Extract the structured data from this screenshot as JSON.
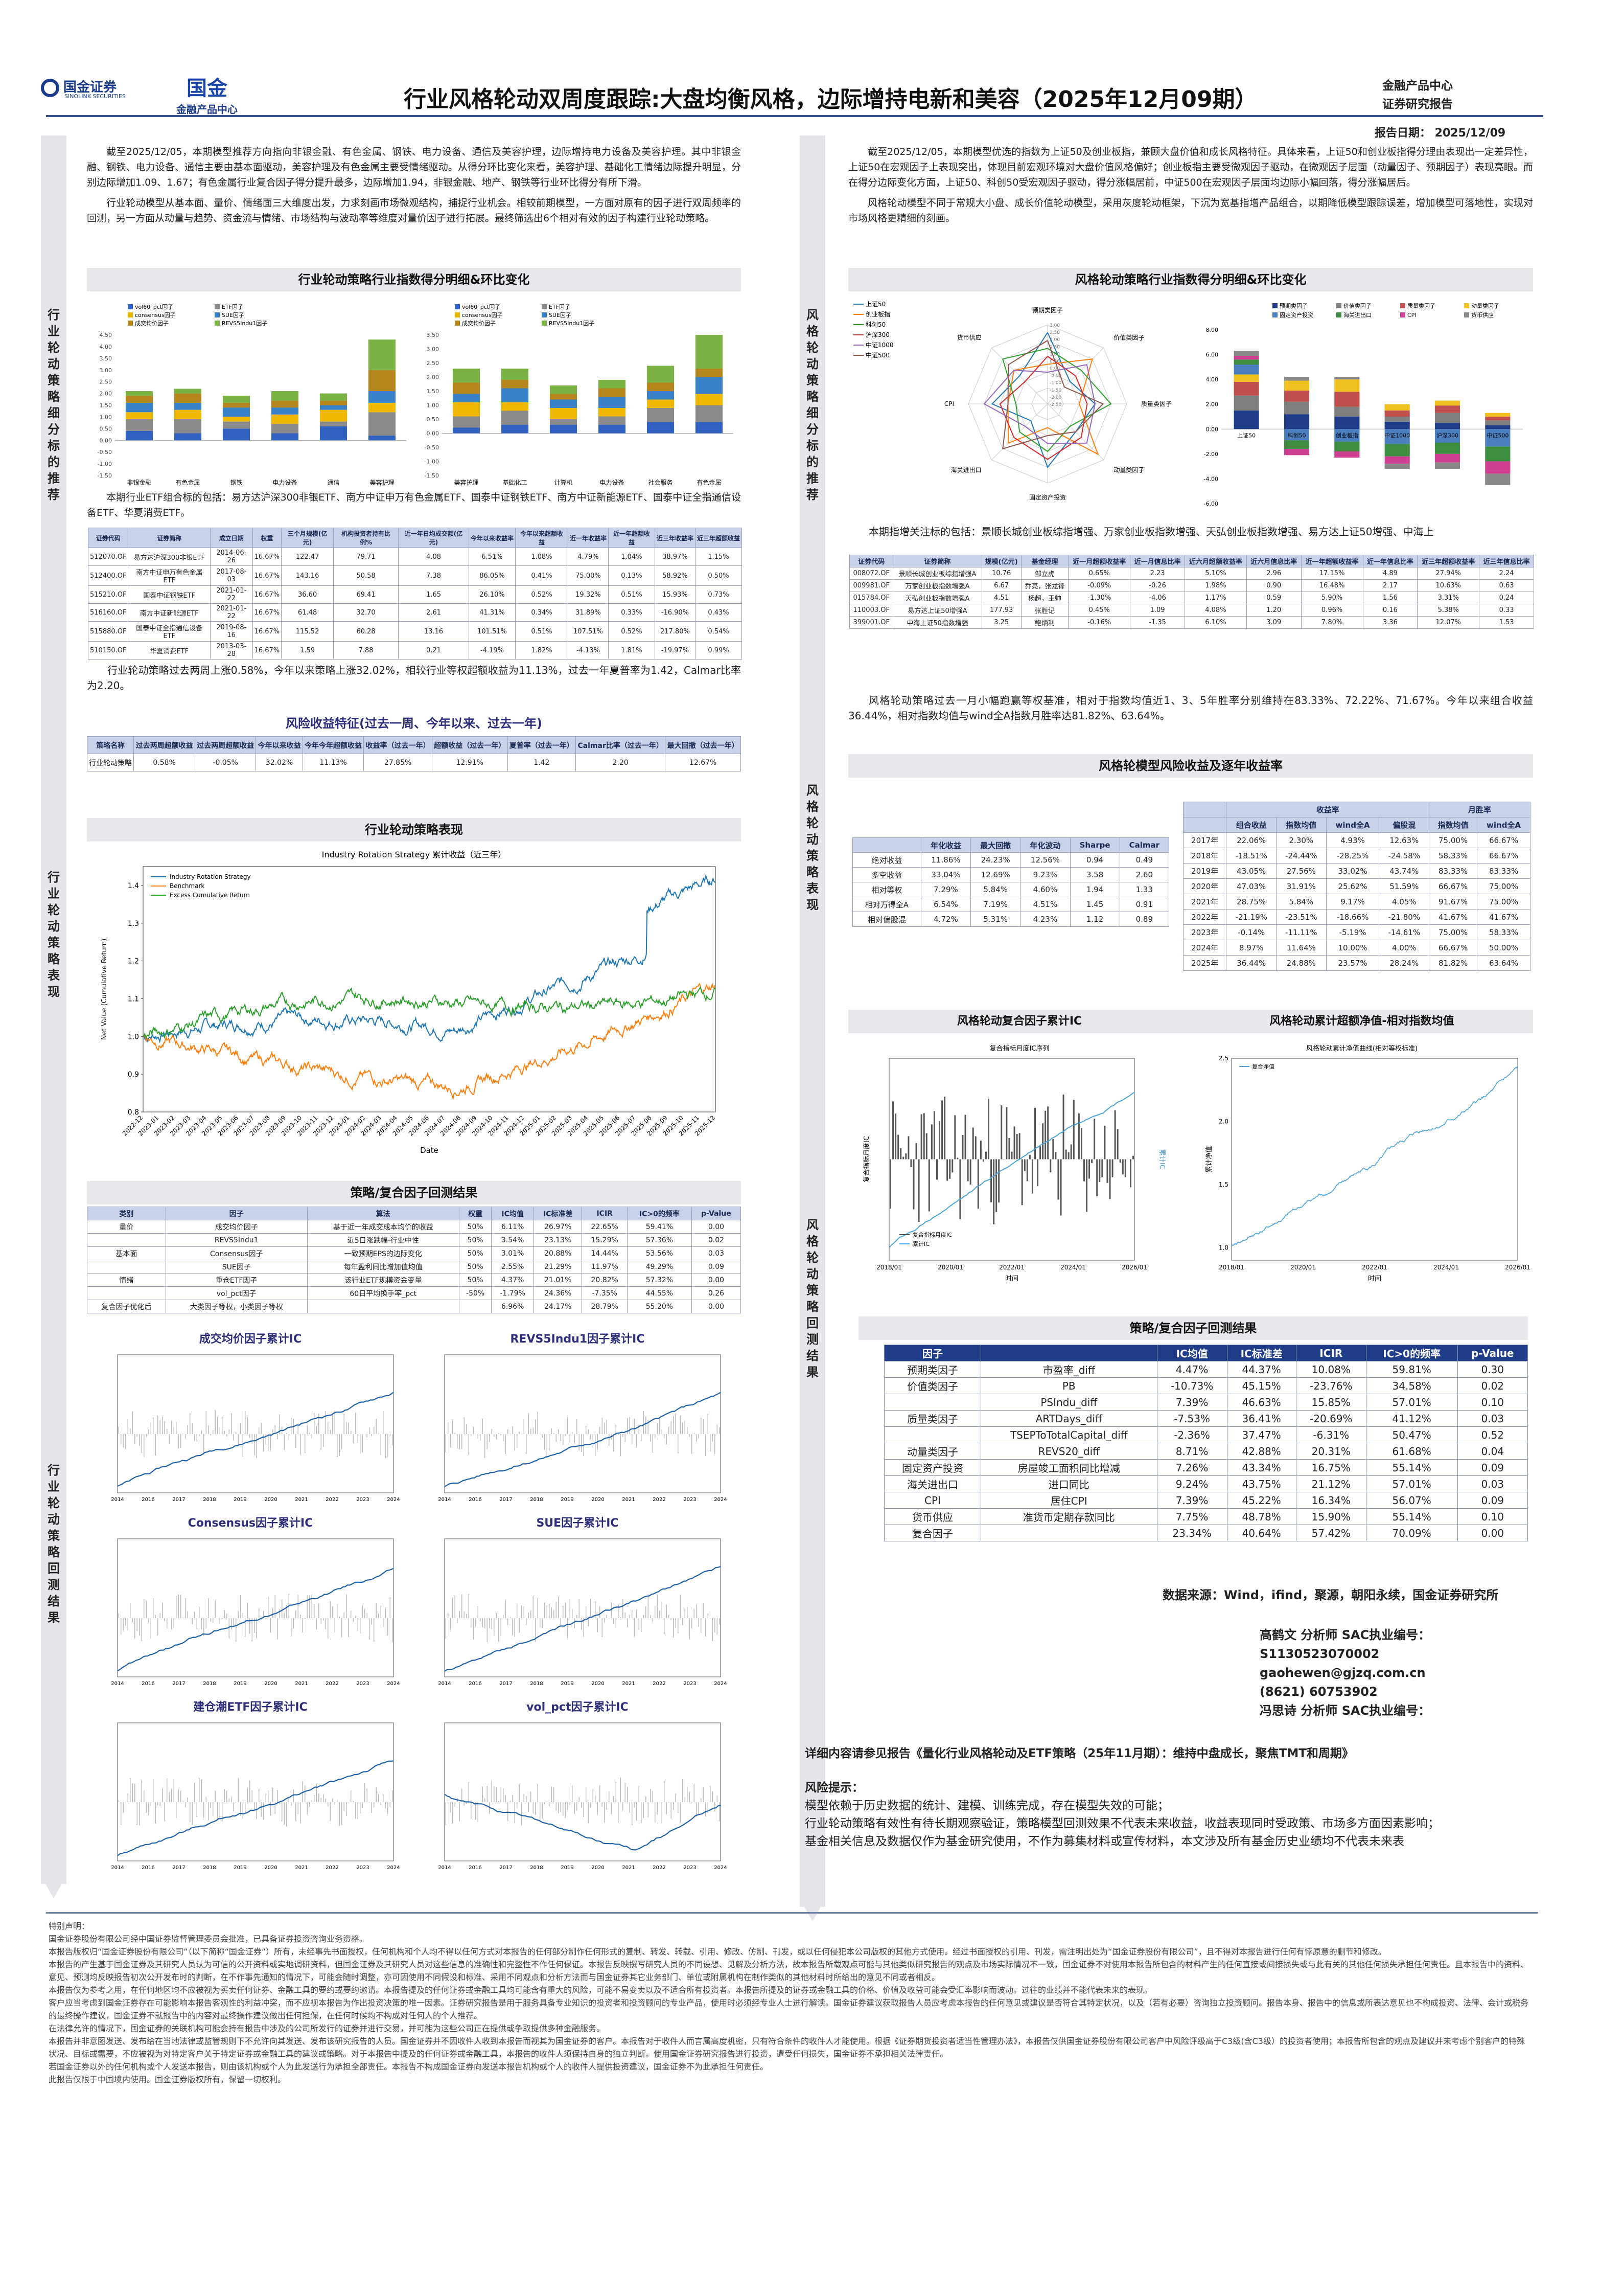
{
  "header": {
    "logo_left": "国金证券",
    "logo_left_sub": "SINOLINK SECURITIES",
    "logo_mid_big": "国金",
    "logo_mid_small": "金融产品中心",
    "title": "行业风格轮动双周度跟踪:大盘均衡风格，边际增持电新和美容（2025年12月09期）",
    "dept_line1": "金融产品中心",
    "dept_line2": "证券研究报告",
    "report_date": "报告日期：  2025/12/09"
  },
  "rails": {
    "l1": "行业轮动策略细分标的推荐",
    "l2": "行业轮动策略表现",
    "l3": "行业轮动策略回测结果",
    "m1": "风格轮动策略细分标的推荐",
    "m2": "风格轮动策略表现",
    "m3": "风格轮动策略回测结果"
  },
  "left": {
    "intro1": "截至2025/12/05，本期模型推荐方向指向非银金融、有色金属、钢铁、电力设备、通信及美容护理，边际增持电力设备及美容护理。其中非银金融、钢铁、电力设备、通信主要由基本面驱动，美容护理及有色金属主要受情绪驱动。从得分环比变化来看，美容护理、基础化工情绪边际提升明显，分别边际增加1.09、1.67；有色金属行业复合因子得分提升最多，边际增加1.94，非银金融、地产、钢铁等行业环比得分有所下滑。",
    "intro2": "行业轮动模型从基本面、量价、情绪面三大维度出发，力求刻画市场微观结构，捕捉行业机会。相较前期模型，一方面对原有的因子进行双周频率的回测，另一方面从动量与趋势、资金流与情绪、市场结构与波动率等维度对量价因子进行拓展。最终筛选出6个相对有效的因子构建行业轮动策略。",
    "chart1_title": "行业轮动策略行业指数得分明细&环比变化",
    "bar_left": {
      "legend": [
        "vol60_pct因子",
        "ETF因子",
        "consensus因子",
        "SUE因子",
        "成交均价因子",
        "REVS5Indu1因子"
      ],
      "categories": [
        "非银金融",
        "有色金属",
        "钢铁",
        "电力设备",
        "通信",
        "美容护理"
      ],
      "ylim": [
        -1.5,
        4.5
      ],
      "ticks": [
        "4.50",
        "4.00",
        "3.50",
        "3.00",
        "2.50",
        "2.00",
        "1.50",
        "1.00",
        "0.50",
        "0.00",
        "-0.50",
        "-1.00",
        "-1.50"
      ]
    },
    "bar_right": {
      "legend": [
        "vol60_pct因子",
        "ETF因子",
        "consensus因子",
        "SUE因子",
        "成交均价因子",
        "REVS5Indu1因子"
      ],
      "categories": [
        "美容护理",
        "基础化工",
        "计算机",
        "电力设备",
        "社会服务",
        "有色金属"
      ],
      "ticks": [
        "3.50",
        "3.00",
        "2.50",
        "2.00",
        "1.50",
        "1.00",
        "0.50",
        "0.00",
        "-0.50",
        "-1.00",
        "-1.50"
      ]
    },
    "etf_intro": "本期行业ETF组合标的包括：易方达沪深300非银ETF、南方中证申万有色金属ETF、国泰中证钢铁ETF、南方中证新能源ETF、国泰中证全指通信设备ETF、华夏消费ETF。",
    "etf_table": {
      "headers": [
        "证券代码",
        "证券简称",
        "成立日期",
        "权重",
        "三个月规模(亿元)",
        "机构投资者持有比例%",
        "近一年日均成交额(亿元)",
        "今年以来收益率",
        "今年以来超额收益",
        "近一年收益率",
        "近一年超额收益",
        "近三年收益率",
        "近三年超额收益"
      ],
      "rows": [
        [
          "512070.OF",
          "易方达沪深300非银ETF",
          "2014-06-26",
          "16.67%",
          "122.47",
          "79.71",
          "4.08",
          "6.51%",
          "1.08%",
          "4.79%",
          "1.04%",
          "38.97%",
          "1.15%"
        ],
        [
          "512400.OF",
          "南方中证申万有色金属ETF",
          "2017-08-03",
          "16.67%",
          "143.16",
          "50.58",
          "7.38",
          "86.05%",
          "0.41%",
          "75.00%",
          "0.13%",
          "58.92%",
          "0.50%"
        ],
        [
          "515210.OF",
          "国泰中证钢铁ETF",
          "2021-01-22",
          "16.67%",
          "36.60",
          "69.41",
          "1.65",
          "26.10%",
          "0.52%",
          "19.32%",
          "0.51%",
          "15.93%",
          "0.73%"
        ],
        [
          "516160.OF",
          "南方中证新能源ETF",
          "2021-01-22",
          "16.67%",
          "61.48",
          "32.70",
          "2.61",
          "41.31%",
          "0.34%",
          "31.89%",
          "0.33%",
          "-16.90%",
          "0.43%"
        ],
        [
          "515880.OF",
          "国泰中证全指通信设备ETF",
          "2019-08-16",
          "16.67%",
          "115.52",
          "60.28",
          "13.16",
          "101.51%",
          "0.51%",
          "107.51%",
          "0.52%",
          "217.80%",
          "0.54%"
        ],
        [
          "510150.OF",
          "华夏消费ETF",
          "2013-03-28",
          "16.67%",
          "1.59",
          "7.88",
          "0.21",
          "-4.19%",
          "1.82%",
          "-4.13%",
          "1.81%",
          "-19.97%",
          "0.99%"
        ]
      ]
    },
    "perf_text": "行业轮动策略过去两周上涨0.58%，今年以来策略上涨32.02%，相较行业等权超额收益为11.13%，过去一年夏普率为1.42，Calmar比率为2.20。",
    "risk_title": "风险收益特征(过去一周、今年以来、过去一年)",
    "risk_table": {
      "headers": [
        "策略名称",
        "过去两周超额收益",
        "过去两周超额收益",
        "今年以来收益",
        "今年今年超额收益",
        "收益率（过去一年）",
        "超额收益（过去一年）",
        "夏普率（过去一年）",
        "Calmar比率（过去一年）",
        "最大回撤（过去一年）"
      ],
      "row": [
        "行业轮动策略",
        "0.58%",
        "-0.05%",
        "32.02%",
        "11.13%",
        "27.85%",
        "12.91%",
        "1.42",
        "2.20",
        "12.67%"
      ]
    },
    "perf_title": "行业轮动策略表现",
    "line_chart": {
      "title": "Industry Rotation Strategy 累计收益（近三年）",
      "legend": [
        "Industry Rotation Strategy",
        "Benchmark",
        "Excess Cumulative Return"
      ],
      "ylabel": "Net Value (Cumulative Return)",
      "xlabel": "Date",
      "yticks": [
        "1.4",
        "1.3",
        "1.2",
        "1.1",
        "1.0",
        "0.9",
        "0.8"
      ],
      "xticks": [
        "2022-12",
        "2023-01",
        "2023-02",
        "2023-03",
        "2023-04",
        "2023-05",
        "2023-06",
        "2023-07",
        "2023-08",
        "2023-09",
        "2023-10",
        "2023-11",
        "2023-12",
        "2024-01",
        "2024-02",
        "2024-03",
        "2024-04",
        "2024-05",
        "2024-06",
        "2024-07",
        "2024-08",
        "2024-09",
        "2024-10",
        "2024-11",
        "2024-12",
        "2025-01",
        "2025-02",
        "2025-03",
        "2025-04",
        "2025-05",
        "2025-06",
        "2025-07",
        "2025-08",
        "2025-09",
        "2025-10",
        "2025-11",
        "2025-12"
      ],
      "colors": [
        "#1f77b4",
        "#ff7f0e",
        "#2ca02c"
      ]
    },
    "factor_title": "策略/复合因子回测结果",
    "factor_table": {
      "headers": [
        "类别",
        "因子",
        "算法",
        "权重",
        "IC均值",
        "IC标准差",
        "ICIR",
        "IC>0的频率",
        "p-Value"
      ],
      "rows": [
        [
          "量价",
          "成交均价因子",
          "基于近一年成交成本均价的收益",
          "50%",
          "6.11%",
          "26.97%",
          "22.65%",
          "59.41%",
          "0.00"
        ],
        [
          "",
          "REVS5Indu1",
          "近5日涨跌幅-行业中性",
          "50%",
          "3.54%",
          "23.13%",
          "15.29%",
          "57.36%",
          "0.02"
        ],
        [
          "基本面",
          "Consensus因子",
          "一致预期EPS的边际变化",
          "50%",
          "3.01%",
          "20.88%",
          "14.44%",
          "53.56%",
          "0.03"
        ],
        [
          "",
          "SUE因子",
          "每年盈利同比增加值均值",
          "50%",
          "2.55%",
          "21.29%",
          "11.97%",
          "49.29%",
          "0.09"
        ],
        [
          "情绪",
          "重仓ETF因子",
          "该行业ETF规模资金变量",
          "50%",
          "4.37%",
          "21.01%",
          "20.82%",
          "57.32%",
          "0.00"
        ],
        [
          "",
          "vol_pct因子",
          "60日平均换手率_pct",
          "-50%",
          "-1.79%",
          "24.36%",
          "-7.35%",
          "44.55%",
          "0.26"
        ],
        [
          "复合因子优化后",
          "大类因子等权，小类因子等权",
          "",
          "",
          "6.96%",
          "24.17%",
          "28.79%",
          "55.20%",
          "0.00"
        ]
      ]
    },
    "mini_titles": [
      "成交均价因子累计IC",
      "REVS5Indu1因子累计IC",
      "Consensus因子累计IC",
      "SUE因子累计IC",
      "建仓潮ETF因子累计IC",
      "vol_pct因子累计IC"
    ],
    "mini_xticks": [
      "2014",
      "2016",
      "2017",
      "2018",
      "2019",
      "2020",
      "2021",
      "2022",
      "2023",
      "2024"
    ]
  },
  "right": {
    "intro1": "截至2025/12/05，本期模型优选的指数为上证50及创业板指，兼顾大盘价值和成长风格特征。具体来看，上证50和创业板指得分理由表现出一定差异性，上证50在宏观因子上表现突出，体现目前宏观环境对大盘价值风格偏好；创业板指主要受微观因子驱动，在微观因子层面（动量因子、预期因子）表现亮眼。而在得分边际变化方面，上证50、科创50受宏观因子驱动，得分涨幅居前，中证500在宏观因子层面均边际小幅回落，得分涨幅居后。",
    "intro2": "风格轮动模型不同于常规大小盘、成长价值轮动模型，采用灰度轮动框架，下沉为宽基指增产品组合，以期降低模型跟踪误差，增加模型可落地性，实现对市场风格更精细的刻画。",
    "chart_title": "风格轮动策略行业指数得分明细&环比变化",
    "radar": {
      "legend": [
        "上证50",
        "创业板指",
        "科创50",
        "沪深300",
        "中证1000",
        "中证500"
      ],
      "colors": [
        "#1f77b4",
        "#ff7f0e",
        "#2ca02c",
        "#d62728",
        "#9467bd",
        "#8c564b"
      ],
      "axes": [
        "预期类因子",
        "价值类因子",
        "质量类因子",
        "动量类因子",
        "固定资产投资",
        "海关进出口",
        "CPI",
        "货币供应"
      ],
      "ticks": [
        "3.00",
        "2.50",
        "2.00",
        "1.50",
        "1.00",
        "0.50",
        "0.00",
        "-0.50",
        "-1.00",
        "-1.50",
        "-2.00",
        "-2.50"
      ]
    },
    "style_bar": {
      "legend": [
        "预期类因子",
        "价值类因子",
        "质量类因子",
        "动量类因子",
        "固定资产投资",
        "海关进出口",
        "CPI",
        "货币供应"
      ],
      "colors": [
        "#1f3c88",
        "#7f7f7f",
        "#c0504d",
        "#f0c020",
        "#4a7fc0",
        "#3e8e41",
        "#d04090",
        "#888888"
      ],
      "categories": [
        "上证50",
        "科创50",
        "创业板指",
        "中证1000",
        "沪深300",
        "中证500"
      ],
      "ticks": [
        "8.00",
        "6.00",
        "4.00",
        "2.00",
        "0.00",
        "-2.00",
        "-4.00",
        "-6.00"
      ]
    },
    "focus_text": "本期指增关注标的包括：景顺长城创业板综指增强、万家创业板指数增强、天弘创业板指数增强、易方达上证50增强、中海上",
    "focus_table": {
      "headers": [
        "证券代码",
        "证券简称",
        "规模(亿元)",
        "基金经理",
        "近一月超额收益率",
        "近一月信息比率",
        "近六月超额收益率",
        "近六月信息比率",
        "近一年超额收益率",
        "近一年信息比率",
        "近三年超额收益率",
        "近三年信息比率"
      ],
      "rows": [
        [
          "008072.OF",
          "景顺长城创业板综指增强A",
          "10.76",
          "邹立虎",
          "0.65%",
          "2.23",
          "5.10%",
          "2.96",
          "17.15%",
          "4.89",
          "27.94%",
          "2.24"
        ],
        [
          "009981.OF",
          "万家创业板指数增强A",
          "6.67",
          "乔亮，张龙锋",
          "-0.09%",
          "-0.26",
          "1.98%",
          "0.90",
          "16.48%",
          "2.17",
          "10.63%",
          "0.63"
        ],
        [
          "015784.OF",
          "天弘创业板指数增强A",
          "4.51",
          "杨超，王帅",
          "-1.30%",
          "-4.06",
          "1.17%",
          "0.59",
          "5.90%",
          "1.56",
          "3.31%",
          "0.24"
        ],
        [
          "110003.OF",
          "易方达上证50增强A",
          "177.93",
          "张胜记",
          "0.45%",
          "1.09",
          "4.08%",
          "1.20",
          "0.96%",
          "0.16",
          "5.38%",
          "0.33"
        ],
        [
          "399001.OF",
          "中海上证50指数增强",
          "3.25",
          "鲍炳利",
          "-0.16%",
          "-1.35",
          "6.10%",
          "3.09",
          "7.80%",
          "3.36",
          "12.07%",
          "1.53"
        ]
      ]
    },
    "perf_text": "风格轮动策略过去一月小幅跑赢等权基准，相对于指数均值近1、3、5年胜率分别维持在83.33%、72.22%、71.67%。今年以来组合收益36.44%，相对指数均值与wind全A指数月胜率达81.82%、63.64%。",
    "risk_title": "风格轮模型风险收益及逐年收益率",
    "annual_headers": [
      "年化收益",
      "最大回撤",
      "年化波动",
      "Sharpe",
      "Calmar"
    ],
    "annual_rows": [
      [
        "绝对收益",
        "11.86%",
        "24.23%",
        "12.56%",
        "0.94",
        "0.49"
      ],
      [
        "多空收益",
        "33.04%",
        "12.69%",
        "9.23%",
        "3.58",
        "2.60"
      ],
      [
        "相对等权",
        "7.29%",
        "5.84%",
        "4.60%",
        "1.94",
        "1.33"
      ],
      [
        "相对万得全A",
        "6.54%",
        "7.19%",
        "4.51%",
        "1.45",
        "0.91"
      ],
      [
        "相对偏股混",
        "4.72%",
        "5.31%",
        "4.23%",
        "1.12",
        "0.89"
      ]
    ],
    "year_group1": "收益率",
    "year_group2": "月胜率",
    "year_headers": [
      "",
      "组合收益",
      "指数均值",
      "wind全A",
      "偏股混",
      "指数均值",
      "wind全A"
    ],
    "year_rows": [
      [
        "2017年",
        "22.06%",
        "2.30%",
        "4.93%",
        "12.63%",
        "75.00%",
        "66.67%"
      ],
      [
        "2018年",
        "-18.51%",
        "-24.44%",
        "-28.25%",
        "-24.58%",
        "58.33%",
        "66.67%"
      ],
      [
        "2019年",
        "43.05%",
        "27.56%",
        "33.02%",
        "43.74%",
        "83.33%",
        "83.33%"
      ],
      [
        "2020年",
        "47.03%",
        "31.91%",
        "25.62%",
        "51.59%",
        "66.67%",
        "75.00%"
      ],
      [
        "2021年",
        "28.75%",
        "5.84%",
        "9.17%",
        "4.05%",
        "91.67%",
        "75.00%"
      ],
      [
        "2022年",
        "-21.19%",
        "-23.51%",
        "-18.66%",
        "-21.80%",
        "41.67%",
        "41.67%"
      ],
      [
        "2023年",
        "-0.14%",
        "-11.11%",
        "-5.19%",
        "-14.61%",
        "75.00%",
        "58.33%"
      ],
      [
        "2024年",
        "8.97%",
        "11.64%",
        "10.00%",
        "4.00%",
        "66.67%",
        "50.00%"
      ],
      [
        "2025年",
        "36.44%",
        "24.88%",
        "23.57%",
        "28.24%",
        "81.82%",
        "63.64%"
      ]
    ],
    "cum_ic_title": "风格轮动复合因子累计IC",
    "cum_ic_inner": "复合指标月度IC序列",
    "cum_ic_ylabel": "复合指标月度IC",
    "cum_ic_ylabel2": "累计IC",
    "cum_ic_xlabel": "时间",
    "cum_ic_legend": [
      "复合指标月度IC",
      "累计IC"
    ],
    "cum_ic_xticks": [
      "2018/01",
      "2020/01",
      "2022/01",
      "2024/01",
      "2026/01"
    ],
    "excess_title": "风格轮动累计超额净值-相对指数均值",
    "excess_inner": "风格轮动累计净值曲线(相对等权标准)",
    "excess_legend": "复合净值",
    "excess_ylabel": "累计净值",
    "excess_xlabel": "时间",
    "excess_xticks": [
      "2018/01",
      "2020/01",
      "2022/01",
      "2024/01",
      "2026/01"
    ],
    "excess_yticks": [
      "2.5",
      "2.0",
      "1.5",
      "1.0"
    ],
    "factor_title": "策略/复合因子回测结果",
    "factor_table": {
      "headers": [
        "因子",
        "",
        "IC均值",
        "IC标准差",
        "ICIR",
        "IC>0的频率",
        "p-Value"
      ],
      "rows": [
        [
          "预期类因子",
          "市盈率_diff",
          "4.47%",
          "44.37%",
          "10.08%",
          "59.81%",
          "0.30"
        ],
        [
          "价值类因子",
          "PB",
          "-10.73%",
          "45.15%",
          "-23.76%",
          "34.58%",
          "0.02"
        ],
        [
          "",
          "PSIndu_diff",
          "7.39%",
          "46.63%",
          "15.85%",
          "57.01%",
          "0.10"
        ],
        [
          "质量类因子",
          "ARTDays_diff",
          "-7.53%",
          "36.41%",
          "-20.69%",
          "41.12%",
          "0.03"
        ],
        [
          "",
          "TSEPToTotalCapital_diff",
          "-2.36%",
          "37.47%",
          "-6.31%",
          "50.47%",
          "0.52"
        ],
        [
          "动量类因子",
          "REVS20_diff",
          "8.71%",
          "42.88%",
          "20.31%",
          "61.68%",
          "0.04"
        ],
        [
          "固定资产投资",
          "房屋竣工面积同比增减",
          "7.26%",
          "43.34%",
          "16.75%",
          "55.14%",
          "0.09"
        ],
        [
          "海关进出口",
          "进口同比",
          "9.24%",
          "43.75%",
          "21.12%",
          "57.01%",
          "0.03"
        ],
        [
          "CPI",
          "居住CPI",
          "7.39%",
          "45.22%",
          "16.34%",
          "56.07%",
          "0.09"
        ],
        [
          "货币供应",
          "准货币定期存款同比",
          "7.75%",
          "48.78%",
          "15.90%",
          "55.14%",
          "0.10"
        ],
        [
          "复合因子",
          "",
          "23.34%",
          "40.64%",
          "57.42%",
          "70.09%",
          "0.00"
        ]
      ]
    },
    "source": "数据来源：Wind，ifind，聚源，朝阳永续，国金证券研究所",
    "analyst1": "高鹤文  分析师  SAC执业编号：",
    "analyst1_no": "S1130523070002",
    "analyst1_mail": "gaohewen@gjzq.com.cn",
    "analyst1_tel": "(8621) 60753902",
    "analyst2": "冯思诗  分析师  SAC执业编号：",
    "ref": "详细内容请参见报告《量化行业风格轮动及ETF策略（25年11月期）：维持中盘成长，聚焦TMT和周期》",
    "risk_hint_title": "风险提示：",
    "risk_hint_1": "模型依赖于历史数据的统计、建模、训练完成，存在模型失效的可能；",
    "risk_hint_2": "行业轮动策略有效性有待长期观察验证，策略模型回测效果不代表未来收益，收益表现同时受政策、市场多方面因素影响；",
    "risk_hint_3": "基金相关信息及数据仅作为基金研究使用，不作为募集材料或宣传材料，本文涉及所有基金历史业绩均不代表未来表"
  },
  "disclaimer": {
    "title": "特别声明：",
    "lines": [
      "国金证券股份有限公司经中国证券监督管理委员会批准，已具备证券投资咨询业务资格。",
      "本报告版权归“国金证券股份有限公司”（以下简称“国金证券”）所有，未经事先书面授权，任何机构和个人均不得以任何方式对本报告的任何部分制作任何形式的复制、转发、转载、引用、修改、仿制、刊发，或以任何侵犯本公司版权的其他方式使用。经过书面授权的引用、刊发，需注明出处为“国金证券股份有限公司”，且不得对本报告进行任何有悖原意的删节和修改。",
      "本报告的产生基于国金证券及其研究人员认为可信的公开资料或实地调研资料，但国金证券及其研究人员对这些信息的准确性和完整性不作任何保证。本报告反映撰写研究人员的不同设想、见解及分析方法，故本报告所载观点可能与其他类似研究报告的观点及市场实际情况不一致，国金证券不对使用本报告所包含的材料产生的任何直接或间接损失或与此有关的其他任何损失承担任何责任。且本报告中的资料、意见、预测均反映报告初次公开发布时的判断，在不作事先通知的情况下，可能会随时调整，亦可因使用不同假设和标准、采用不同观点和分析方法而与国金证券其它业务部门、单位或附属机构在制作类似的其他材料时所给出的意见不同或者相反。",
      "本报告仅为参考之用，在任何地区均不应被视为买卖任何证券、金融工具的要约或要约邀请。本报告提及的任何证券或金融工具均可能含有重大的风险，可能不易变卖以及不适合所有投资者。本报告所提及的证券或金融工具的价格、价值及收益可能会受汇率影响而波动。过往的业绩并不能代表未来的表现。",
      "客户应当考虑到国金证券存在可能影响本报告客观性的利益冲突，而不应视本报告为作出投资决策的唯一因素。证券研究报告是用于服务具备专业知识的投资者和投资顾问的专业产品，使用时必须经专业人士进行解读。国金证券建议获取报告人员应考虑本报告的任何意见或建议是否符合其特定状况，以及（若有必要）咨询独立投资顾问。报告本身、报告中的信息或所表达意见也不构成投资、法律、会计或税务的最终操作建议，国金证券不就报告中的内容对最终操作建议做出任何担保，在任何时候均不构成对任何人的个人推荐。",
      "在法律允许的情况下，国金证券的关联机构可能会持有报告中涉及的公司所发行的证券并进行交易，并可能为这些公司正在提供或争取提供多种金融服务。",
      "本报告并非意图发送、发布给在当地法律或监管规则下不允许向其发送、发布该研究报告的人员。国金证券并不因收件人收到本报告而视其为国金证券的客户。本报告对于收件人而言属高度机密，只有符合条件的收件人才能使用。根据《证券期货投资者适当性管理办法》，本报告仅供国金证券股份有限公司客户中风险评级高于C3级(含C3级）的投资者使用；本报告所包含的观点及建议并未考虑个别客户的特殊状况、目标或需要，不应被视为对特定客户关于特定证券或金融工具的建议或策略。对于本报告中提及的任何证券或金融工具，本报告的收件人须保持自身的独立判断。使用国金证券研究报告进行投资，遭受任何损失，国金证券不承担相关法律责任。",
      "若国金证券以外的任何机构或个人发送本报告，则由该机构或个人为此发送行为承担全部责任。本报告不构成国金证券向发送本报告机构或个人的收件人提供投资建议，国金证券不为此承担任何责任。",
      "此报告仅限于中国境内使用。国金证券版权所有，保留一切权利。"
    ]
  }
}
